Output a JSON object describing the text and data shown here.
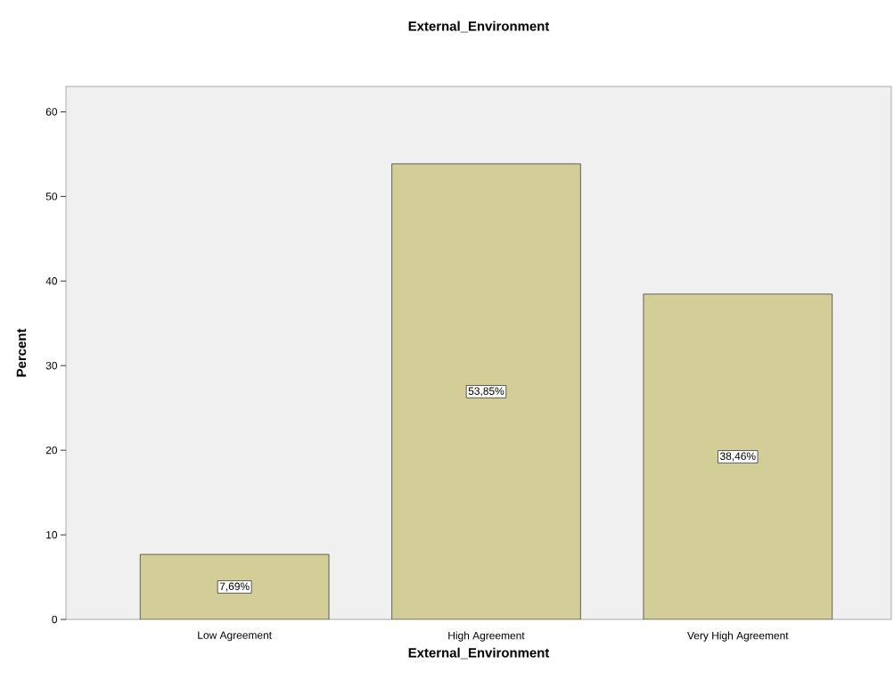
{
  "chart_data": {
    "type": "bar",
    "title": "External_Environment",
    "xlabel": "External_Environment",
    "ylabel": "Percent",
    "categories": [
      "Low Agreement",
      "High Agreement",
      "Very High Agreement"
    ],
    "values": [
      7.69,
      53.85,
      38.46
    ],
    "value_labels": [
      "7,69%",
      "53,85%",
      "38,46%"
    ],
    "color": "#d3ce97",
    "ylim": [
      0,
      63
    ],
    "yticks": [
      0,
      10,
      20,
      30,
      40,
      50,
      60
    ]
  }
}
